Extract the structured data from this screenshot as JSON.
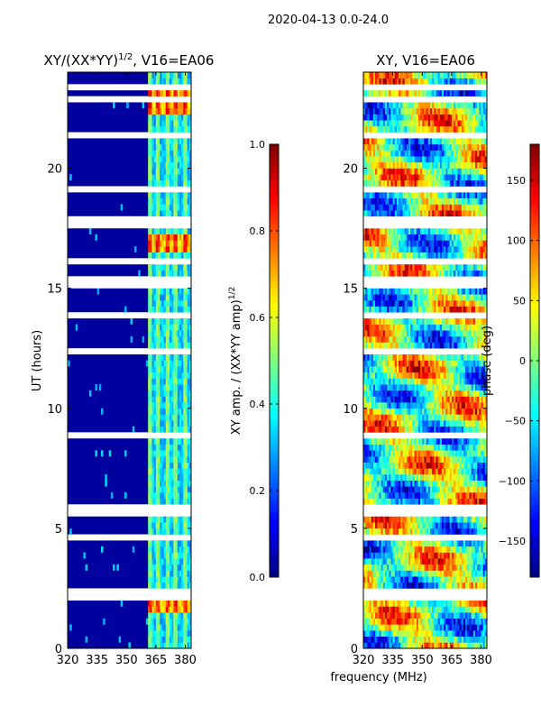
{
  "figure": {
    "suptitle": "2020-04-13 0.0-24.0",
    "shared_xlabel": "frequency (MHz)"
  },
  "colors": {
    "jet": [
      "#00007f",
      "#0000ff",
      "#007fff",
      "#00ffff",
      "#7fff7f",
      "#ffff00",
      "#ff7f00",
      "#ff0000",
      "#7f0000"
    ],
    "gap": "#ffffff",
    "frame": "#000000"
  },
  "chart_data": [
    {
      "type": "heatmap",
      "title": "XY/(XX*YY)",
      "title_exponent": "1/2",
      "title_suffix": ", V16=EA06",
      "xlabel": "",
      "ylabel": "UT (hours)",
      "xlim": [
        320,
        383
      ],
      "ylim": [
        0,
        24
      ],
      "xticks": [
        320,
        335,
        350,
        365,
        380
      ],
      "xtick_labels": [
        "320",
        "335",
        "350",
        "365",
        "380"
      ],
      "yticks": [
        0,
        5,
        10,
        15,
        20
      ],
      "ytick_labels": [
        "0",
        "5",
        "10",
        "15",
        "20"
      ],
      "value_kind": "amplitude",
      "background_value": 0.04,
      "band_start_mhz": 361,
      "high_channels_mhz": [
        362,
        366,
        371,
        375,
        380
      ],
      "peak_hours": [
        23.0,
        22.6,
        1.8,
        16.8
      ],
      "blank_hours": [
        1.0,
        2.2,
        2.3,
        3.5,
        4.6,
        5.5,
        5.7,
        5.8,
        8.8,
        8.5,
        10.0,
        12.4,
        13.8,
        15.2,
        15.3,
        15.4,
        16.2,
        17.7,
        17.8,
        17.9,
        18.0,
        19.2,
        21.4,
        21.5,
        22.9,
        23.3
      ],
      "colorbar": {
        "label": "XY amp. / (XX*YY amp)",
        "label_exponent": "1/2",
        "vmin": 0.0,
        "vmax": 1.0,
        "ticks": [
          0.0,
          0.2,
          0.4,
          0.6,
          0.8,
          1.0
        ],
        "tick_labels": [
          "0.0",
          "0.2",
          "0.4",
          "0.6",
          "0.8",
          "1.0"
        ]
      }
    },
    {
      "type": "heatmap",
      "title": "XY, V16=EA06",
      "xlabel": "frequency (MHz)",
      "ylabel": "",
      "xlim": [
        320,
        383
      ],
      "ylim": [
        0,
        24
      ],
      "xticks": [
        320,
        335,
        350,
        365,
        380
      ],
      "xtick_labels": [
        "320",
        "335",
        "350",
        "365",
        "380"
      ],
      "yticks": [
        0,
        5,
        10,
        15,
        20
      ],
      "ytick_labels": [
        "0",
        "5",
        "10",
        "15",
        "20"
      ],
      "value_kind": "phase",
      "blank_hours": [
        1.0,
        2.2,
        2.3,
        3.5,
        4.6,
        5.5,
        5.7,
        5.8,
        8.8,
        8.5,
        10.0,
        12.4,
        13.8,
        15.2,
        15.3,
        15.4,
        16.2,
        17.7,
        17.8,
        17.9,
        18.0,
        19.2,
        21.4,
        21.5,
        22.9,
        23.3
      ],
      "colorbar": {
        "label": "phase (deg)",
        "vmin": -180,
        "vmax": 180,
        "ticks": [
          -150,
          -100,
          -50,
          0,
          50,
          100,
          150
        ],
        "tick_labels": [
          "−150",
          "−100",
          "−50",
          "0",
          "50",
          "100",
          "150"
        ]
      }
    }
  ]
}
